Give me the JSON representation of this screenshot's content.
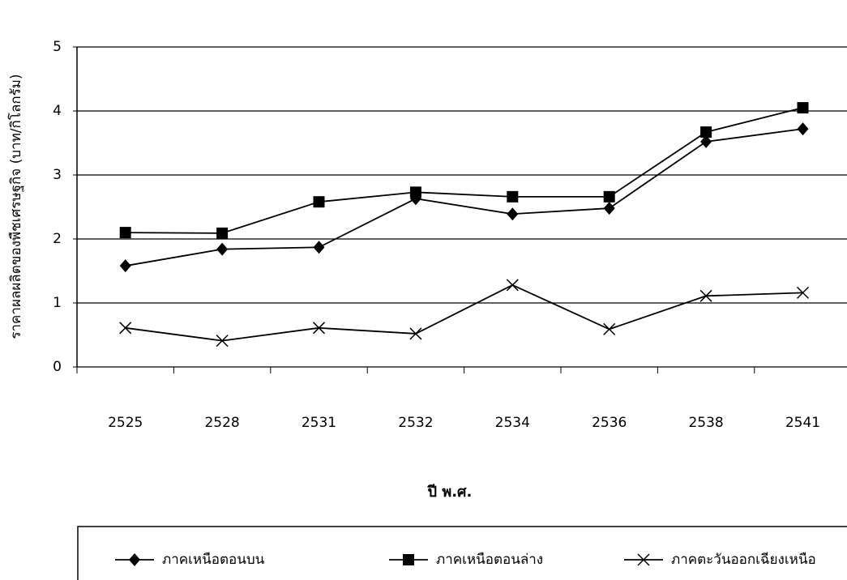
{
  "chart_data": {
    "type": "line",
    "x_label": "ปี พ.ศ.",
    "y_label": "ราคาผลผลิตของพืชเศรษฐกิจ (บาท/กิโลกรัม)",
    "categories": [
      "2525",
      "2528",
      "2531",
      "2532",
      "2534",
      "2536",
      "2538",
      "2541"
    ],
    "series": [
      {
        "name": "ภาคเหนือตอนบน",
        "color": "#000000",
        "marker": "diamond",
        "values": [
          1.58,
          1.84,
          1.87,
          2.63,
          2.39,
          2.48,
          3.52,
          3.72
        ]
      },
      {
        "name": "ภาคเหนือตอนล่าง",
        "color": "#000000",
        "marker": "square",
        "values": [
          2.1,
          2.09,
          2.58,
          2.73,
          2.66,
          2.66,
          3.67,
          4.05
        ]
      },
      {
        "name": "ภาคตะวันออกเฉียงเหนือ",
        "color": "#000000",
        "marker": "x",
        "values": [
          0.61,
          0.41,
          0.61,
          0.52,
          1.28,
          0.59,
          1.11,
          1.16
        ]
      }
    ],
    "ylim": [
      0,
      5
    ],
    "yticks": [
      0,
      1,
      2,
      3,
      4,
      5
    ],
    "grid": true,
    "legend": "bottom"
  }
}
